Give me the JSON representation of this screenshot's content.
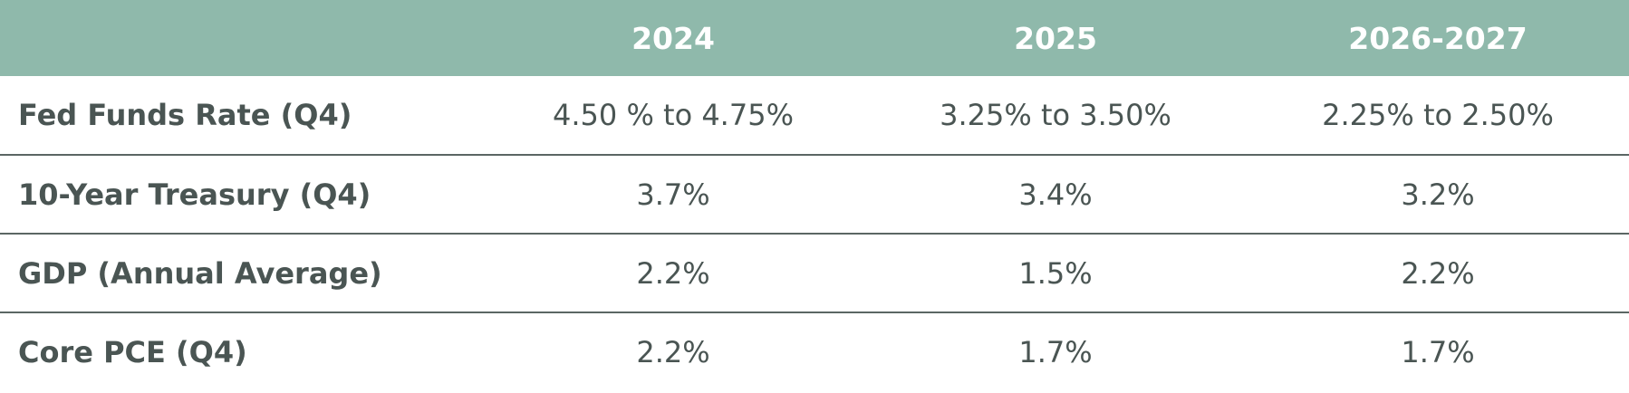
{
  "table": {
    "columns": [
      "2024",
      "2025",
      "2026-2027"
    ],
    "rows": [
      {
        "label": "Fed Funds Rate (Q4)",
        "cells": [
          "4.50 % to 4.75%",
          "3.25% to 3.50%",
          "2.25% to 2.50%"
        ]
      },
      {
        "label": "10-Year Treasury (Q4)",
        "cells": [
          "3.7%",
          "3.4%",
          "3.2%"
        ]
      },
      {
        "label": "GDP (Annual Average)",
        "cells": [
          "2.2%",
          "1.5%",
          "2.2%"
        ]
      },
      {
        "label": "Core PCE (Q4)",
        "cells": [
          "2.2%",
          "1.7%",
          "1.7%"
        ]
      }
    ]
  }
}
